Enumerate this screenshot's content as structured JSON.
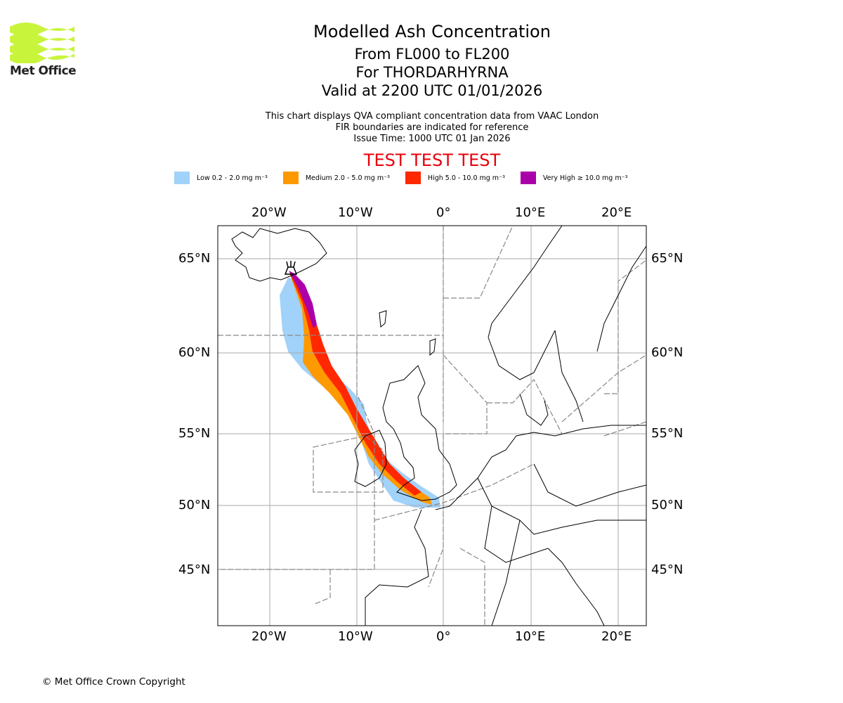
{
  "header": {
    "title": "Modelled Ash Concentration",
    "levels": "From FL000 to FL200",
    "volcano": "For THORDARHYRNA",
    "valid": "Valid at 2200 UTC 01/01/2026",
    "desc1": "This chart displays QVA compliant concentration data from VAAC London",
    "desc2": "FIR boundaries are indicated for reference",
    "issue": "Issue Time: 1000 UTC 01 Jan 2026",
    "test": "TEST TEST TEST"
  },
  "logo": {
    "text": "Met Office",
    "color": "#c8f53c"
  },
  "legend": [
    {
      "label": "Low 0.2 - 2.0 mg m⁻³",
      "color": "#a0d2fa"
    },
    {
      "label": "Medium 2.0 - 5.0 mg m⁻³",
      "color": "#ff9900"
    },
    {
      "label": "High 5.0 - 10.0 mg m⁻³",
      "color": "#ff2800"
    },
    {
      "label": "Very High ≥ 10.0 mg m⁻³",
      "color": "#aa00aa"
    }
  ],
  "axes": {
    "lon": [
      "20°W",
      "10°W",
      "0°",
      "10°E",
      "20°E"
    ],
    "lat": [
      "65°N",
      "60°N",
      "55°N",
      "50°N",
      "45°N"
    ]
  },
  "footer": {
    "copyright": "© Met Office Crown Copyright"
  }
}
